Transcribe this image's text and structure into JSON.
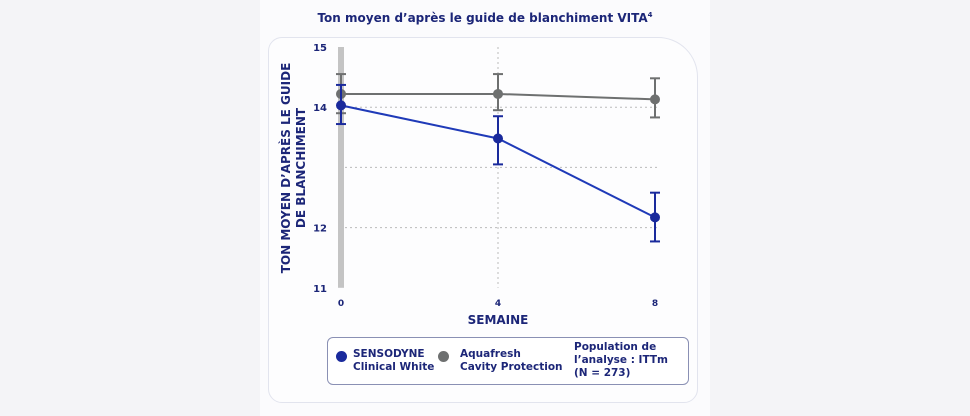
{
  "chart_data": {
    "type": "line",
    "title": "Ton moyen d’après le guide de blanchiment VITA",
    "title_superscript": "4",
    "xlabel": "SEMAINE",
    "ylabel": "TON MOYEN D’APRÈS LE GUIDE DE BLANCHIMENT",
    "x": [
      0,
      4,
      8
    ],
    "x_ticks": [
      "0",
      "4",
      "8"
    ],
    "y_ticks": [
      "11",
      "12",
      "14",
      "15"
    ],
    "ylim": [
      11,
      15
    ],
    "grid": "dotted horizontal at 12, 13, 14; dotted vertical at 4",
    "series": [
      {
        "name": "SENSODYNE Clinical White",
        "color": "#1a2a9c",
        "values": [
          14.03,
          13.48,
          12.17
        ],
        "err_low": [
          13.72,
          13.05,
          11.77
        ],
        "err_high": [
          14.37,
          13.85,
          12.58
        ]
      },
      {
        "name": "Aquafresh Cavity Protection",
        "color": "#6e7070",
        "values": [
          14.22,
          14.22,
          14.13
        ],
        "err_low": [
          13.9,
          13.95,
          13.83
        ],
        "err_high": [
          14.55,
          14.55,
          14.48
        ]
      }
    ]
  },
  "legend": {
    "s1_line1": "SENSODYNE",
    "s1_line2": "Clinical White",
    "s2_line1": "Aquafresh",
    "s2_line2": "Cavity Protection",
    "pop_line1": "Population de",
    "pop_line2": "l’analyse : ITTm",
    "pop_line3": "(N = 273)"
  }
}
